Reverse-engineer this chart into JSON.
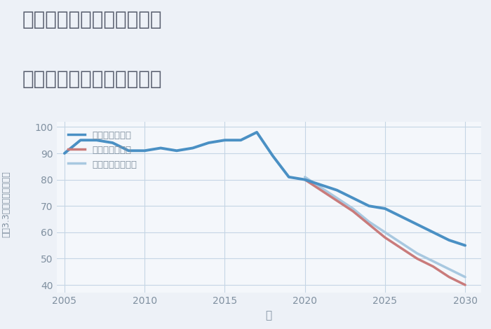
{
  "title_line1": "三重県松阪市飯高町加波の",
  "title_line2": "中古マンションの価格推移",
  "xlabel": "年",
  "ylabel": "平（3.3㎡）単価（万円）",
  "ylim": [
    37,
    102
  ],
  "xlim": [
    2004.5,
    2031
  ],
  "yticks": [
    40,
    50,
    60,
    70,
    80,
    90,
    100
  ],
  "xticks": [
    2005,
    2010,
    2015,
    2020,
    2025,
    2030
  ],
  "fig_bg_color": "#edf1f7",
  "plot_bg_color": "#f4f7fb",
  "grid_color": "#c5d5e5",
  "series": [
    {
      "label": "グッドシナリオ",
      "color": "#4a90c4",
      "linewidth": 2.8,
      "zorder": 3,
      "x": [
        2005,
        2006,
        2007,
        2008,
        2009,
        2010,
        2011,
        2012,
        2013,
        2014,
        2015,
        2016,
        2017,
        2018,
        2019,
        2020,
        2021,
        2022,
        2023,
        2024,
        2025,
        2026,
        2027,
        2028,
        2029,
        2030
      ],
      "y": [
        90,
        95,
        95,
        94,
        91,
        91,
        92,
        91,
        92,
        94,
        95,
        95,
        98,
        89,
        81,
        80,
        78,
        76,
        73,
        70,
        69,
        66,
        63,
        60,
        57,
        55
      ]
    },
    {
      "label": "バッドシナリオ",
      "color": "#c97b7b",
      "linewidth": 2.5,
      "zorder": 2,
      "x": [
        2020,
        2021,
        2022,
        2023,
        2024,
        2025,
        2026,
        2027,
        2028,
        2029,
        2030
      ],
      "y": [
        80,
        76,
        72,
        68,
        63,
        58,
        54,
        50,
        47,
        43,
        40
      ]
    },
    {
      "label": "ノーマルシナリオ",
      "color": "#a8c8e0",
      "linewidth": 2.5,
      "zorder": 1,
      "x": [
        2020,
        2021,
        2022,
        2023,
        2024,
        2025,
        2026,
        2027,
        2028,
        2029,
        2030
      ],
      "y": [
        81,
        77,
        73,
        69,
        64,
        60,
        56,
        52,
        49,
        46,
        43
      ]
    }
  ],
  "legend_labels": [
    "グッドシナリオ",
    "バッドシナリオ",
    "ノーマルシナリオ"
  ],
  "legend_colors": [
    "#4a90c4",
    "#c97b7b",
    "#a8c8e0"
  ],
  "title_color": "#5a6070",
  "axis_color": "#8090a0",
  "tick_color": "#8090a0",
  "tick_fontsize": 10,
  "xlabel_fontsize": 11,
  "ylabel_fontsize": 9,
  "title_fontsize": 20,
  "legend_fontsize": 9.5
}
